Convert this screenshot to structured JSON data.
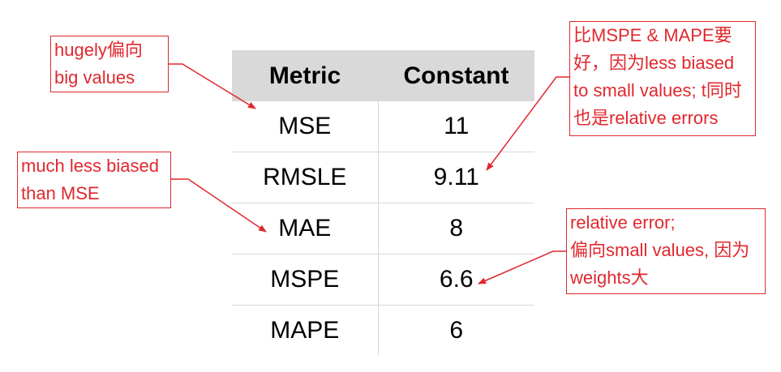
{
  "table": {
    "headers": [
      "Metric",
      "Constant"
    ],
    "rows": [
      {
        "metric": "MSE",
        "value": "11"
      },
      {
        "metric": "RMSLE",
        "value": "9.11"
      },
      {
        "metric": "MAE",
        "value": "8"
      },
      {
        "metric": "MSPE",
        "value": "6.6"
      },
      {
        "metric": "MAPE",
        "value": "6"
      }
    ]
  },
  "annotations": {
    "mse_note": "hugely偏向\nbig values",
    "rmsle_note": "much less biased\nthan MSE",
    "rmsle_right_note": "比MSPE & MAPE要\n好，因为less biased\nto small values; t同时\n也是relative errors",
    "mspe_note": "relative error;\n偏向small values, 因为\nweights大"
  },
  "colors": {
    "annotation": "#e0282e",
    "header_bg": "#d9d9d9"
  }
}
